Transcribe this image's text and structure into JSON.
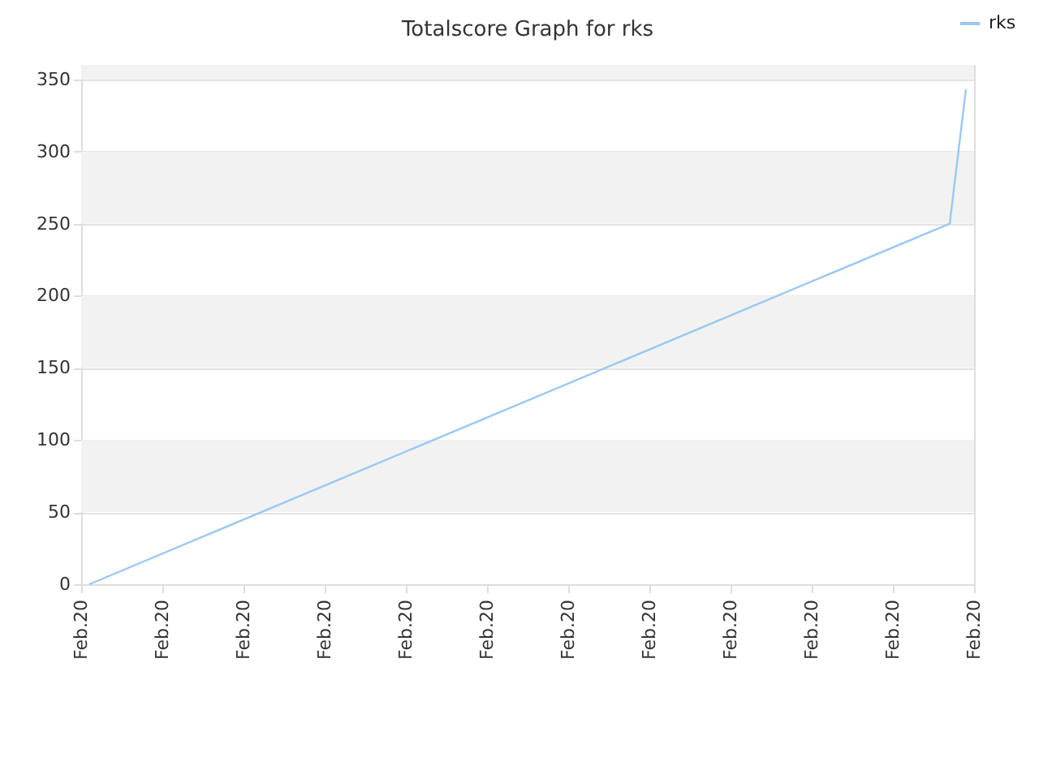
{
  "chart_data": {
    "type": "line",
    "title": "Totalscore Graph for rks",
    "categories": [
      "Feb.20",
      null,
      null,
      null,
      null,
      null,
      null,
      null,
      null,
      null,
      "Feb.20",
      null,
      null,
      null,
      null,
      null,
      null,
      null,
      null,
      null,
      "Feb.20",
      null,
      null,
      null,
      null,
      null,
      null,
      null,
      null,
      null,
      "Feb.20",
      null,
      null,
      null,
      null,
      null,
      null,
      null,
      null,
      null,
      "Feb.20",
      null,
      null,
      null,
      null,
      null,
      null,
      null,
      null,
      null,
      "Feb.20",
      null,
      null,
      null,
      null,
      null,
      null,
      null,
      null,
      null,
      "Feb.20",
      null,
      null,
      null,
      null,
      null,
      null,
      null,
      null,
      null,
      "Feb.20",
      null,
      null,
      null,
      null,
      null,
      null,
      null,
      null,
      null,
      "Feb.20",
      null,
      null,
      null,
      null,
      null,
      null,
      null,
      null,
      null,
      "Feb.20",
      null,
      null,
      null,
      null,
      null,
      null,
      null,
      null,
      null,
      "Feb.20",
      null,
      null,
      null,
      null,
      null,
      null,
      null,
      null,
      null,
      "Feb.20"
    ],
    "series": [
      {
        "name": "rks",
        "color": "#99c8f4",
        "values": [
          null,
          0,
          null,
          null,
          null,
          null,
          null,
          null,
          null,
          null,
          null,
          null,
          null,
          null,
          null,
          null,
          null,
          null,
          null,
          null,
          null,
          null,
          null,
          null,
          null,
          null,
          null,
          null,
          null,
          null,
          null,
          null,
          null,
          null,
          null,
          null,
          null,
          null,
          null,
          null,
          null,
          null,
          null,
          null,
          null,
          null,
          null,
          null,
          null,
          null,
          null,
          null,
          null,
          null,
          null,
          null,
          null,
          null,
          null,
          null,
          null,
          null,
          null,
          null,
          null,
          null,
          null,
          null,
          null,
          null,
          null,
          null,
          null,
          null,
          null,
          null,
          null,
          null,
          null,
          null,
          null,
          null,
          null,
          null,
          null,
          null,
          null,
          null,
          null,
          null,
          null,
          null,
          null,
          null,
          null,
          null,
          null,
          null,
          null,
          null,
          null,
          null,
          null,
          null,
          null,
          null,
          null,
          250,
          null,
          343,
          null
        ]
      }
    ],
    "ylim": [
      0,
      360
    ],
    "yticks": [
      0,
      50,
      100,
      150,
      200,
      250,
      300,
      350
    ],
    "grid": "y",
    "legend": "top right",
    "marker": "none",
    "line_style": "solid"
  }
}
